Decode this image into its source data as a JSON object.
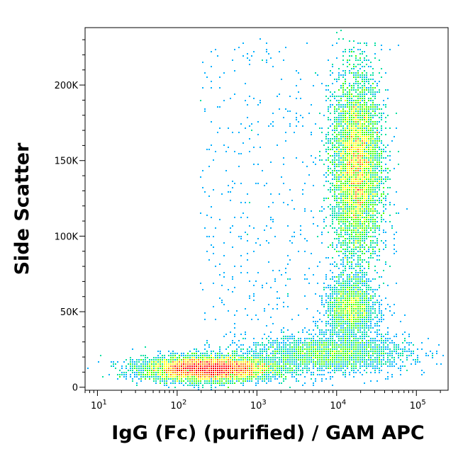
{
  "chart_data": {
    "type": "scatter",
    "style": "density-dot-plot",
    "xlabel": "IgG (Fc) (purified) / GAM APC",
    "ylabel": "Side Scatter",
    "x_scale": "log",
    "xlim": [
      7,
      250000
    ],
    "ylim": [
      -2000,
      238000
    ],
    "x_ticks": [
      {
        "value": 10,
        "base": "10",
        "exp": "1"
      },
      {
        "value": 100,
        "base": "10",
        "exp": "2"
      },
      {
        "value": 1000,
        "base": "10",
        "exp": "3"
      },
      {
        "value": 10000,
        "base": "10",
        "exp": "4"
      },
      {
        "value": 100000,
        "base": "10",
        "exp": "5"
      }
    ],
    "y_ticks": [
      {
        "value": 0,
        "label": "0"
      },
      {
        "value": 50000,
        "label": "50K"
      },
      {
        "value": 100000,
        "label": "100K"
      },
      {
        "value": 150000,
        "label": "150K"
      },
      {
        "value": 200000,
        "label": "200K"
      }
    ],
    "populations": [
      {
        "x_center": 250,
        "y_center": 12000,
        "x_log_spread": 0.4,
        "y_spread": 4000,
        "count": 9000
      },
      {
        "x_center": 18000,
        "y_center": 145000,
        "x_log_spread": 0.15,
        "y_spread": 30000,
        "count": 9000
      },
      {
        "x_center": 15000,
        "y_center": 52000,
        "x_log_spread": 0.15,
        "y_spread": 10000,
        "count": 2000
      },
      {
        "x_center": 8000,
        "y_center": 22000,
        "x_log_spread": 0.5,
        "y_spread": 6000,
        "count": 2500
      }
    ],
    "density_colors": [
      "#0000ff",
      "#00b0ff",
      "#00e0a0",
      "#40ff00",
      "#ffff00",
      "#ff8000",
      "#ff0000"
    ],
    "grid": false
  }
}
